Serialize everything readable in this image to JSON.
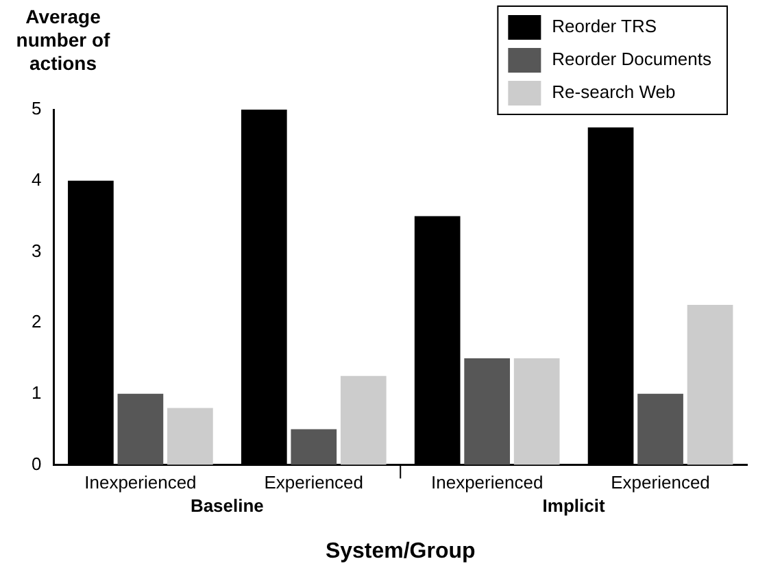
{
  "chart_data": {
    "type": "bar",
    "ylabel": "Average number of actions",
    "xlabel": "System/Group",
    "categories": [
      "Inexperienced",
      "Experienced",
      "Inexperienced",
      "Experienced"
    ],
    "series": [
      {
        "name": "Reorder TRS",
        "color": "#000000",
        "values": [
          4.0,
          5.0,
          3.5,
          4.75
        ]
      },
      {
        "name": "Reorder Documents",
        "color": "#575757",
        "values": [
          1.0,
          0.5,
          1.5,
          1.0
        ]
      },
      {
        "name": "Re-search Web",
        "color": "#cccccc",
        "values": [
          0.8,
          1.25,
          1.5,
          2.25
        ]
      }
    ],
    "annotations": [
      "Baseline",
      "Implicit"
    ],
    "ylim": [
      0,
      5
    ],
    "yticks": [
      0,
      1,
      2,
      3,
      4,
      5
    ],
    "grid": false,
    "legend": "top right"
  }
}
